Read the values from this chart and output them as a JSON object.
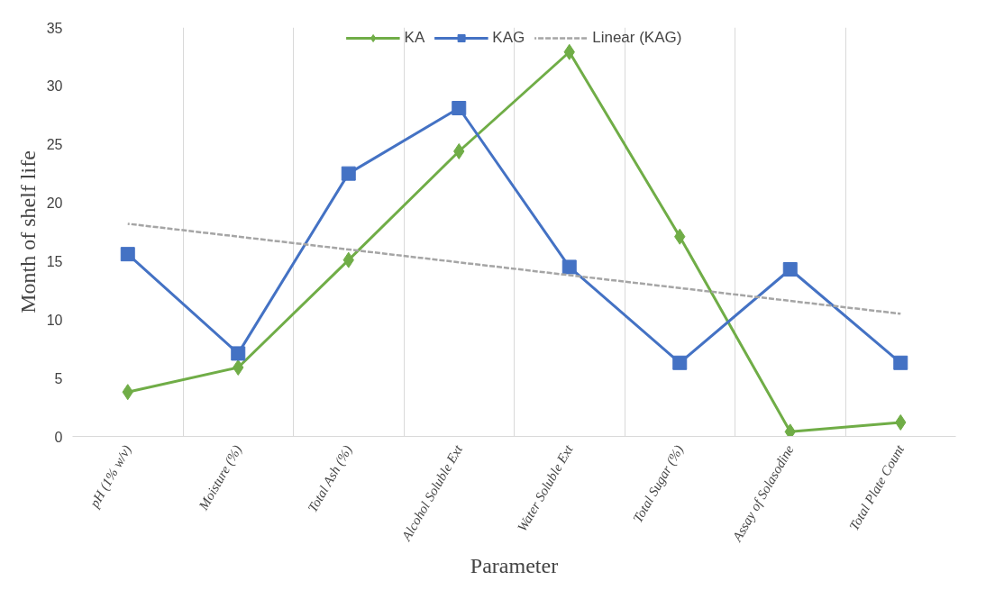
{
  "chart_data": {
    "type": "line",
    "xlabel": "Parameter",
    "ylabel": "Month of shelf life",
    "categories": [
      "pH (1% w/v)",
      "Moisture (%)",
      "Total Ash (%)",
      "Alcohol Soluble Ext",
      "Water Soluble Ext",
      "Total Sugar (%)",
      "Assay of Solasodine",
      "Total Plate Count"
    ],
    "series": [
      {
        "name": "KA",
        "color": "#70ad47",
        "marker": "diamond",
        "values": [
          3.8,
          5.9,
          15.1,
          24.4,
          32.9,
          17.1,
          0.4,
          1.2
        ]
      },
      {
        "name": "KAG",
        "color": "#4472c4",
        "marker": "square",
        "values": [
          15.6,
          7.1,
          22.5,
          28.1,
          14.5,
          6.3,
          14.3,
          6.3
        ]
      },
      {
        "name": "Linear (KAG)",
        "color": "#a5a5a5",
        "marker": "none",
        "line_style": "dashed",
        "values": [
          18.2,
          17.1,
          16.0,
          14.9,
          13.8,
          12.7,
          11.6,
          10.5
        ]
      }
    ],
    "ylim": [
      0,
      35
    ],
    "yticks": [
      0,
      5,
      10,
      15,
      20,
      25,
      30,
      35
    ],
    "grid": "x",
    "legend": "top"
  }
}
